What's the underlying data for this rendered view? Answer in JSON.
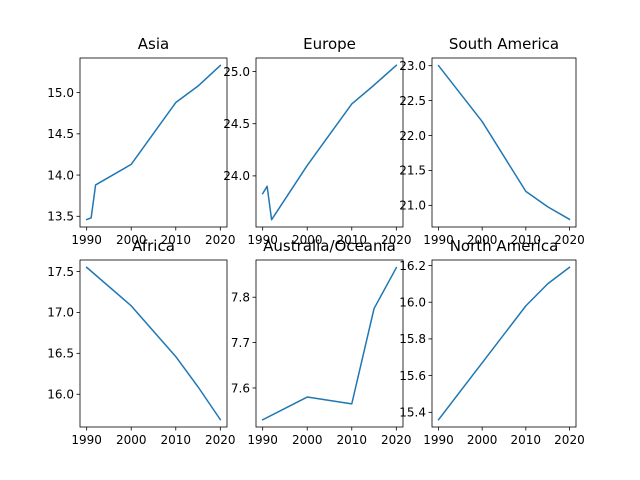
{
  "chart_data": [
    {
      "type": "line",
      "title": "Asia",
      "x": [
        1990,
        1991,
        1992,
        2000,
        2010,
        2015,
        2020
      ],
      "series": [
        {
          "values": [
            13.46,
            13.48,
            13.88,
            14.13,
            14.88,
            15.08,
            15.33
          ]
        }
      ],
      "xlim": [
        1988.5,
        2021.5
      ],
      "ylim": [
        13.37,
        15.42
      ],
      "xticks": [
        1990,
        2000,
        2010,
        2020
      ],
      "yticks": [
        13.5,
        14.0,
        14.5,
        15.0
      ],
      "ytick_labels": [
        "13.5",
        "14.0",
        "14.5",
        "15.0"
      ],
      "grid": false
    },
    {
      "type": "line",
      "title": "Europe",
      "x": [
        1990,
        1991,
        1992,
        2000,
        2010,
        2015,
        2020
      ],
      "series": [
        {
          "values": [
            23.83,
            23.9,
            23.58,
            24.1,
            24.69,
            24.87,
            25.06
          ]
        }
      ],
      "xlim": [
        1988.5,
        2021.5
      ],
      "ylim": [
        23.51,
        25.13
      ],
      "xticks": [
        1990,
        2000,
        2010,
        2020
      ],
      "yticks": [
        24.0,
        24.5,
        25.0
      ],
      "ytick_labels": [
        "24.0",
        "24.5",
        "25.0"
      ],
      "grid": false
    },
    {
      "type": "line",
      "title": "South America",
      "x": [
        1990,
        2000,
        2010,
        2015,
        2020
      ],
      "series": [
        {
          "values": [
            23.0,
            22.2,
            21.2,
            20.98,
            20.8
          ]
        }
      ],
      "xlim": [
        1988.5,
        2021.5
      ],
      "ylim": [
        20.69,
        23.11
      ],
      "xticks": [
        1990,
        2000,
        2010,
        2020
      ],
      "yticks": [
        21.0,
        21.5,
        22.0,
        22.5,
        23.0
      ],
      "ytick_labels": [
        "21.0",
        "21.5",
        "22.0",
        "22.5",
        "23.0"
      ],
      "grid": false
    },
    {
      "type": "line",
      "title": "Africa",
      "x": [
        1990,
        2000,
        2010,
        2015,
        2020
      ],
      "series": [
        {
          "values": [
            17.55,
            17.08,
            16.46,
            16.09,
            15.69
          ]
        }
      ],
      "xlim": [
        1988.5,
        2021.5
      ],
      "ylim": [
        15.6,
        17.64
      ],
      "xticks": [
        1990,
        2000,
        2010,
        2020
      ],
      "yticks": [
        16.0,
        16.5,
        17.0,
        17.5
      ],
      "ytick_labels": [
        "16.0",
        "16.5",
        "17.0",
        "17.5"
      ],
      "grid": false
    },
    {
      "type": "line",
      "title": "Australia/Oceania",
      "x": [
        1990,
        2000,
        2010,
        2015,
        2020
      ],
      "series": [
        {
          "values": [
            7.53,
            7.58,
            7.565,
            7.775,
            7.865
          ]
        }
      ],
      "xlim": [
        1988.5,
        2021.5
      ],
      "ylim": [
        7.514,
        7.882
      ],
      "xticks": [
        1990,
        2000,
        2010,
        2020
      ],
      "yticks": [
        7.6,
        7.7,
        7.8
      ],
      "ytick_labels": [
        "7.6",
        "7.7",
        "7.8"
      ],
      "grid": false
    },
    {
      "type": "line",
      "title": "North America",
      "x": [
        1990,
        2000,
        2010,
        2015,
        2020
      ],
      "series": [
        {
          "values": [
            15.36,
            15.67,
            15.98,
            16.1,
            16.19
          ]
        }
      ],
      "xlim": [
        1988.5,
        2021.5
      ],
      "ylim": [
        15.32,
        16.23
      ],
      "xticks": [
        1990,
        2000,
        2010,
        2020
      ],
      "yticks": [
        15.4,
        15.6,
        15.8,
        16.0,
        16.2
      ],
      "ytick_labels": [
        "15.4",
        "15.6",
        "15.8",
        "16.0",
        "16.2"
      ],
      "grid": false
    }
  ],
  "colors": {
    "line": "#1f77b4"
  }
}
